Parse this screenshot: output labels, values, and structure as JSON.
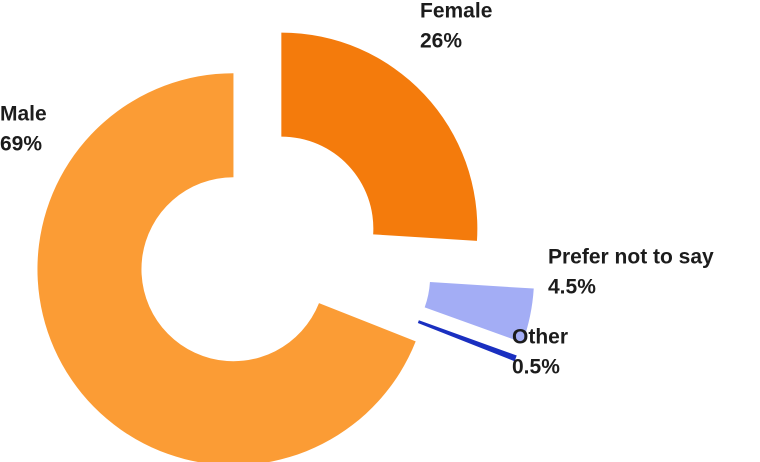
{
  "chart_data": {
    "type": "pie",
    "categories": [
      "Female",
      "Prefer not to say",
      "Other",
      "Male"
    ],
    "values": [
      26,
      4.5,
      0.5,
      69
    ],
    "value_labels": [
      "26%",
      "4.5%",
      "0.5%",
      "69%"
    ],
    "colors": [
      "#f47b0c",
      "#a3adf5",
      "#1a2fc0",
      "#fb9c35"
    ]
  }
}
